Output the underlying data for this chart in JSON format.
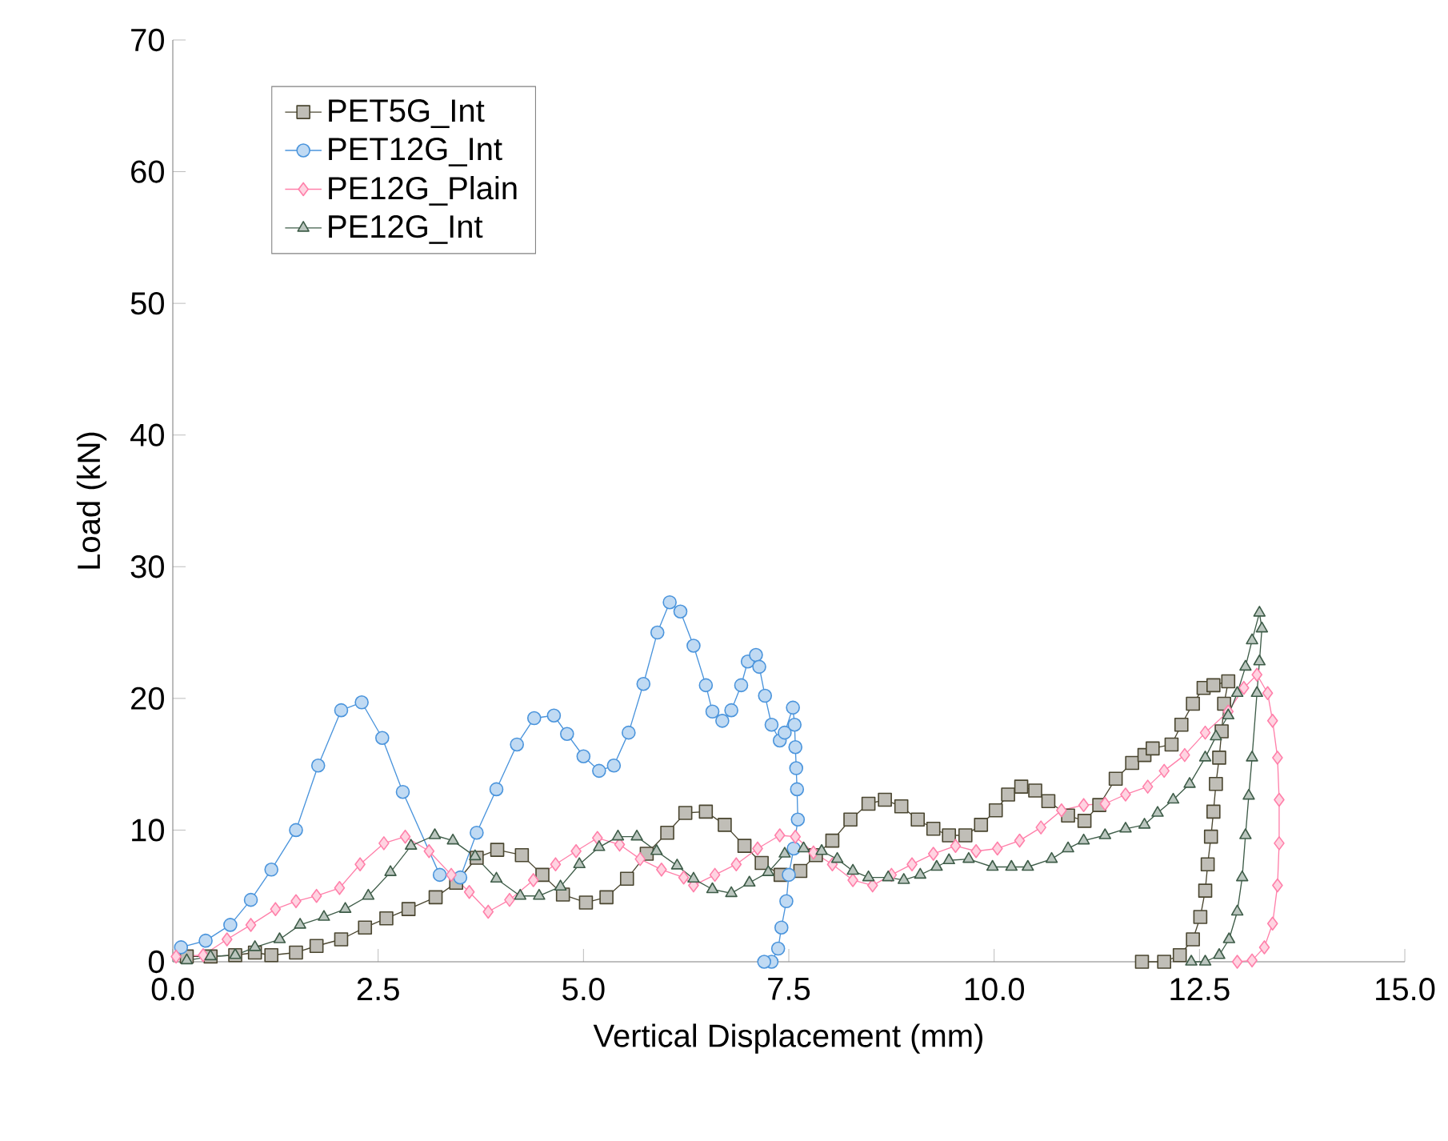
{
  "chart_data": {
    "type": "line",
    "xlabel": "Vertical Displacement (mm)",
    "ylabel": "Load (kN)",
    "xlim": [
      0,
      15
    ],
    "ylim": [
      0,
      70
    ],
    "xticks": [
      {
        "value": 0,
        "label": "0.0"
      },
      {
        "value": 2.5,
        "label": "2.5"
      },
      {
        "value": 5,
        "label": "5.0"
      },
      {
        "value": 7.5,
        "label": "7.5"
      },
      {
        "value": 10,
        "label": "10.0"
      },
      {
        "value": 12.5,
        "label": "12.5"
      },
      {
        "value": 15,
        "label": "15.0"
      }
    ],
    "yticks": [
      0,
      10,
      20,
      30,
      40,
      50,
      60,
      70
    ],
    "grid": false,
    "legend": "top left",
    "line_style": "solid",
    "series": [
      {
        "name": "PET5G_Int",
        "color": "#4a4630",
        "marker": "square",
        "x": [
          0.17,
          0.46,
          0.76,
          1.0,
          1.2,
          1.5,
          1.75,
          2.05,
          2.34,
          2.6,
          2.87,
          3.2,
          3.45,
          3.7,
          3.95,
          4.25,
          4.5,
          4.75,
          5.03,
          5.28,
          5.53,
          5.77,
          6.02,
          6.24,
          6.49,
          6.72,
          6.96,
          7.17,
          7.4,
          7.64,
          7.83,
          8.03,
          8.25,
          8.47,
          8.67,
          8.87,
          9.07,
          9.26,
          9.45,
          9.65,
          9.84,
          10.02,
          10.17,
          10.33,
          10.5,
          10.66,
          10.9,
          11.1,
          11.28,
          11.48,
          11.68,
          11.83,
          11.93,
          12.16,
          12.28,
          12.42,
          12.55,
          12.67,
          12.85,
          12.8,
          12.77,
          12.74,
          12.7,
          12.67,
          12.64,
          12.6,
          12.57,
          12.51,
          12.42,
          12.26,
          12.07,
          11.8
        ],
        "values": [
          0.4,
          0.4,
          0.5,
          0.7,
          0.5,
          0.7,
          1.2,
          1.7,
          2.6,
          3.3,
          4.0,
          4.9,
          6.0,
          7.9,
          8.5,
          8.1,
          6.6,
          5.1,
          4.5,
          4.9,
          6.3,
          8.2,
          9.8,
          11.3,
          11.4,
          10.4,
          8.8,
          7.5,
          6.6,
          6.9,
          8.1,
          9.2,
          10.8,
          12.0,
          12.3,
          11.8,
          10.8,
          10.1,
          9.6,
          9.6,
          10.4,
          11.5,
          12.7,
          13.3,
          13.0,
          12.2,
          11.1,
          10.7,
          11.9,
          13.9,
          15.1,
          15.7,
          16.2,
          16.5,
          18.0,
          19.6,
          20.8,
          21.0,
          21.3,
          19.6,
          17.5,
          15.5,
          13.5,
          11.4,
          9.5,
          7.4,
          5.4,
          3.4,
          1.7,
          0.5,
          0,
          0
        ]
      },
      {
        "name": "PET12G_Int",
        "color": "#4a94dc",
        "marker": "circle",
        "x": [
          0.1,
          0.4,
          0.7,
          0.95,
          1.2,
          1.5,
          1.77,
          2.05,
          2.3,
          2.55,
          2.8,
          3.25,
          3.5,
          3.7,
          3.94,
          4.19,
          4.4,
          4.64,
          4.8,
          5.0,
          5.19,
          5.37,
          5.55,
          5.73,
          5.9,
          6.05,
          6.18,
          6.34,
          6.49,
          6.57,
          6.69,
          6.8,
          6.92,
          7.0,
          7.1,
          7.14,
          7.21,
          7.29,
          7.39,
          7.45,
          7.55,
          7.57,
          7.58,
          7.59,
          7.6,
          7.61,
          7.56,
          7.5,
          7.47,
          7.41,
          7.37,
          7.29,
          7.2
        ],
        "values": [
          1.1,
          1.6,
          2.8,
          4.7,
          7.0,
          10.0,
          14.9,
          19.1,
          19.7,
          17.0,
          12.9,
          6.6,
          6.4,
          9.8,
          13.1,
          16.5,
          18.5,
          18.7,
          17.3,
          15.6,
          14.5,
          14.9,
          17.4,
          21.1,
          25.0,
          27.3,
          26.6,
          24.0,
          21.0,
          19.0,
          18.3,
          19.1,
          21.0,
          22.8,
          23.3,
          22.4,
          20.2,
          18.0,
          16.8,
          17.4,
          19.3,
          18.0,
          16.3,
          14.7,
          13.1,
          10.8,
          8.6,
          6.6,
          4.6,
          2.6,
          1.0,
          0,
          0
        ]
      },
      {
        "name": "PE12G_Plain",
        "color": "#ff80aa",
        "marker": "diamond",
        "x": [
          0.04,
          0.37,
          0.66,
          0.95,
          1.25,
          1.5,
          1.75,
          2.03,
          2.28,
          2.57,
          2.83,
          3.12,
          3.39,
          3.61,
          3.84,
          4.1,
          4.39,
          4.66,
          4.91,
          5.17,
          5.44,
          5.69,
          5.95,
          6.22,
          6.34,
          6.6,
          6.86,
          7.12,
          7.39,
          7.58,
          7.8,
          8.03,
          8.28,
          8.52,
          8.75,
          9.0,
          9.26,
          9.53,
          9.78,
          10.04,
          10.31,
          10.57,
          10.82,
          11.09,
          11.35,
          11.6,
          11.87,
          12.07,
          12.32,
          12.57,
          12.85,
          13.04,
          13.2,
          13.33,
          13.39,
          13.45,
          13.47,
          13.47,
          13.45,
          13.39,
          13.29,
          13.14,
          12.96
        ],
        "values": [
          0.4,
          0.5,
          1.7,
          2.8,
          4.0,
          4.6,
          5.0,
          5.6,
          7.4,
          9.0,
          9.5,
          8.4,
          6.6,
          5.3,
          3.8,
          4.7,
          6.2,
          7.4,
          8.4,
          9.4,
          8.9,
          7.8,
          7.0,
          6.4,
          5.8,
          6.6,
          7.4,
          8.6,
          9.6,
          9.5,
          8.3,
          7.4,
          6.2,
          5.8,
          6.6,
          7.4,
          8.2,
          8.8,
          8.4,
          8.6,
          9.2,
          10.2,
          11.5,
          11.9,
          12.0,
          12.7,
          13.3,
          14.5,
          15.7,
          17.4,
          19.0,
          20.8,
          21.8,
          20.4,
          18.3,
          15.5,
          12.3,
          9.0,
          5.8,
          2.9,
          1.1,
          0.1,
          0
        ]
      },
      {
        "name": "PE12G_Int",
        "color": "#3e5c48",
        "marker": "triangle",
        "x": [
          0.17,
          0.46,
          0.76,
          1.0,
          1.3,
          1.55,
          1.84,
          2.1,
          2.38,
          2.65,
          2.9,
          3.19,
          3.41,
          3.68,
          3.94,
          4.23,
          4.46,
          4.72,
          4.95,
          5.19,
          5.42,
          5.65,
          5.89,
          6.14,
          6.34,
          6.57,
          6.8,
          7.02,
          7.25,
          7.45,
          7.68,
          7.9,
          8.09,
          8.28,
          8.47,
          8.71,
          8.9,
          9.1,
          9.3,
          9.45,
          9.69,
          9.98,
          10.21,
          10.41,
          10.7,
          10.9,
          11.09,
          11.35,
          11.6,
          11.83,
          11.99,
          12.18,
          12.38,
          12.57,
          12.7,
          12.85,
          12.96,
          13.06,
          13.14,
          13.23,
          13.26,
          13.23,
          13.2,
          13.14,
          13.1,
          13.06,
          13.02,
          12.96,
          12.86,
          12.74,
          12.57,
          12.4
        ],
        "values": [
          0.1,
          0.4,
          0.5,
          1.1,
          1.7,
          2.8,
          3.4,
          4.0,
          5.0,
          6.8,
          8.8,
          9.6,
          9.2,
          8.0,
          6.3,
          5.0,
          5.0,
          5.7,
          7.4,
          8.7,
          9.5,
          9.5,
          8.4,
          7.3,
          6.3,
          5.5,
          5.2,
          6.0,
          6.8,
          8.2,
          8.6,
          8.4,
          7.8,
          6.9,
          6.4,
          6.4,
          6.2,
          6.6,
          7.2,
          7.7,
          7.8,
          7.2,
          7.2,
          7.2,
          7.8,
          8.6,
          9.2,
          9.6,
          10.1,
          10.4,
          11.3,
          12.3,
          13.5,
          15.5,
          17.1,
          18.7,
          20.4,
          22.4,
          24.4,
          26.5,
          25.3,
          22.8,
          20.4,
          15.5,
          12.6,
          9.6,
          6.4,
          3.8,
          1.7,
          0.5,
          0,
          0
        ]
      }
    ]
  }
}
